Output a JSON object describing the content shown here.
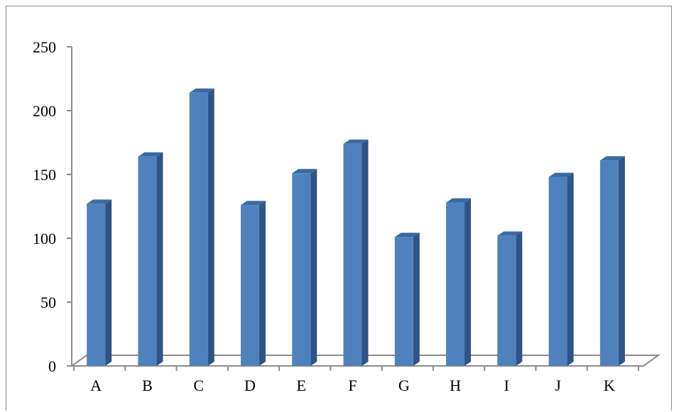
{
  "chart_data": {
    "type": "bar",
    "style": "3d-column",
    "categories": [
      "A",
      "B",
      "C",
      "D",
      "E",
      "F",
      "G",
      "H",
      "I",
      "J",
      "K"
    ],
    "values": [
      127,
      164,
      214,
      126,
      151,
      174,
      101,
      128,
      102,
      148,
      161
    ],
    "ylim": [
      0,
      250
    ],
    "yticks": [
      0,
      50,
      100,
      150,
      200,
      250
    ],
    "title": "",
    "xlabel": "",
    "ylabel": "",
    "grid": false,
    "legend": "none",
    "colors": {
      "bar_front": "#4f81bd",
      "bar_side": "#2f5486",
      "bar_top": "#3a6aa3",
      "axis": "#8c8c8c"
    }
  }
}
